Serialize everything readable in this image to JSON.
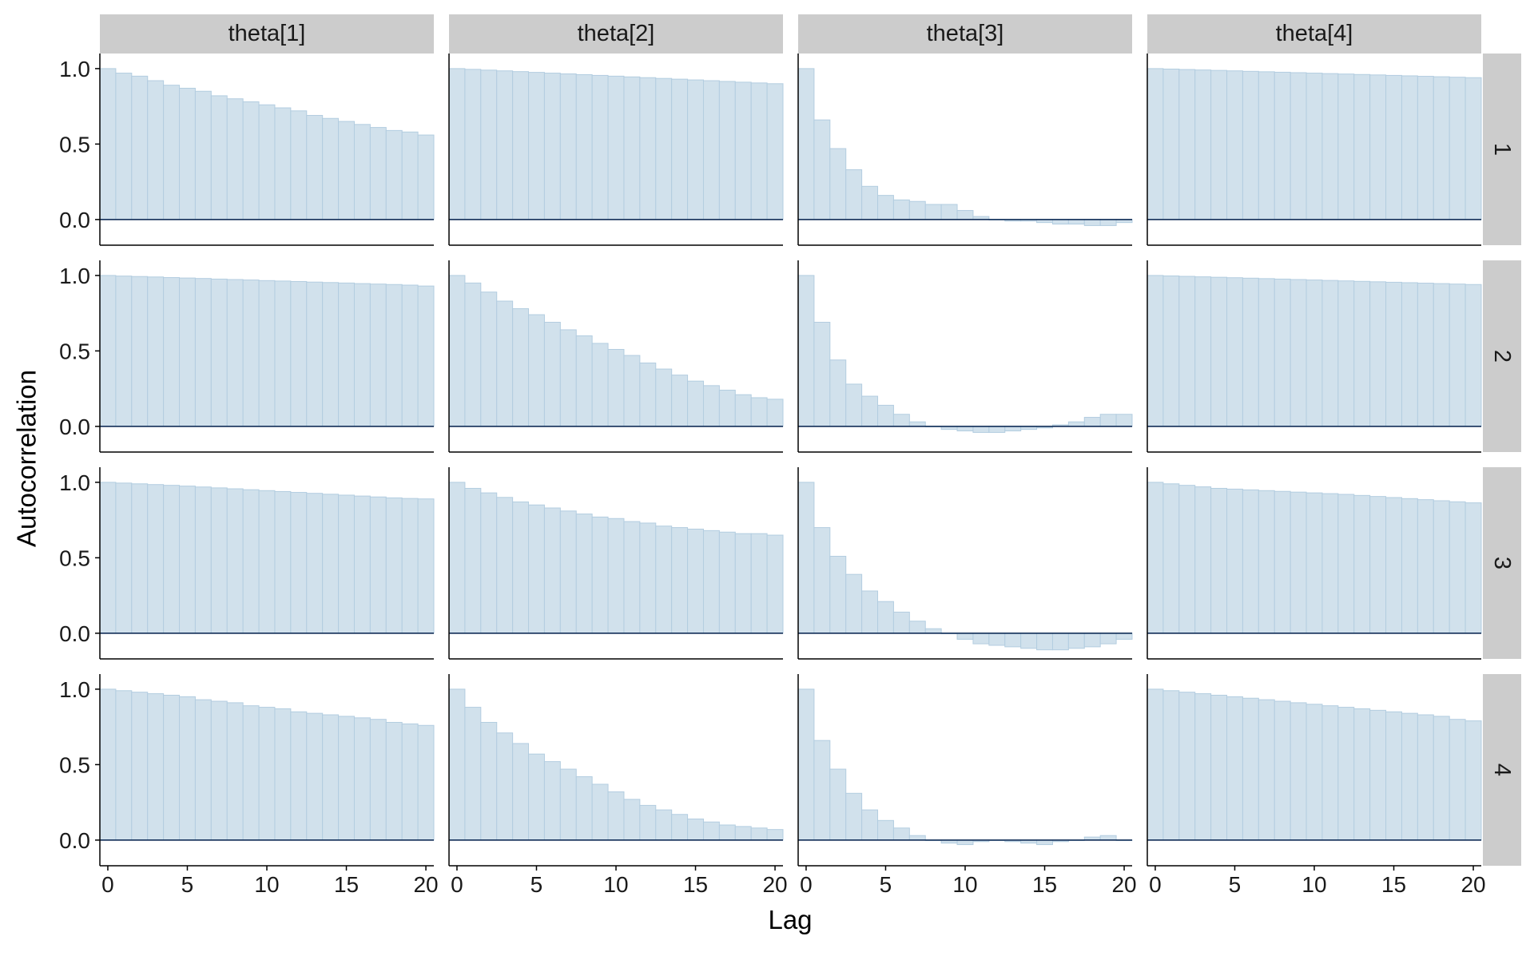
{
  "chart_data": {
    "type": "bar",
    "subtype": "autocorrelation-facet-grid",
    "xlabel": "Lag",
    "ylabel": "Autocorrelation",
    "column_labels": [
      "theta[1]",
      "theta[2]",
      "theta[3]",
      "theta[4]"
    ],
    "row_labels": [
      "1",
      "2",
      "3",
      "4"
    ],
    "xlim": [
      -0.5,
      20.5
    ],
    "ylim": [
      -0.17,
      1.1
    ],
    "x_ticks": [
      0,
      5,
      10,
      15,
      20
    ],
    "y_ticks": [
      0.0,
      0.5,
      1.0
    ],
    "y_tick_labels": [
      "0.0",
      "0.5",
      "1.0"
    ],
    "lags": [
      0,
      1,
      2,
      3,
      4,
      5,
      6,
      7,
      8,
      9,
      10,
      11,
      12,
      13,
      14,
      15,
      16,
      17,
      18,
      19,
      20
    ],
    "grid": false,
    "colors": {
      "bar_fill": "#d1e1ec",
      "bar_edge": "#b3cde0",
      "zero_line": "#011f4b",
      "strip_bg": "#cccccc",
      "axis": "#000000"
    },
    "panels": [
      {
        "row": "1",
        "column": "theta[1]",
        "values": [
          1.0,
          0.97,
          0.95,
          0.92,
          0.89,
          0.87,
          0.85,
          0.82,
          0.8,
          0.78,
          0.76,
          0.74,
          0.72,
          0.69,
          0.67,
          0.65,
          0.63,
          0.61,
          0.59,
          0.58,
          0.56
        ]
      },
      {
        "row": "1",
        "column": "theta[2]",
        "values": [
          1.0,
          0.995,
          0.99,
          0.985,
          0.98,
          0.975,
          0.97,
          0.965,
          0.96,
          0.955,
          0.95,
          0.945,
          0.94,
          0.935,
          0.93,
          0.925,
          0.92,
          0.915,
          0.91,
          0.905,
          0.9
        ]
      },
      {
        "row": "1",
        "column": "theta[3]",
        "values": [
          1.0,
          0.66,
          0.47,
          0.33,
          0.22,
          0.16,
          0.13,
          0.12,
          0.1,
          0.1,
          0.06,
          0.02,
          0.0,
          -0.01,
          -0.01,
          -0.02,
          -0.03,
          -0.03,
          -0.04,
          -0.04,
          -0.02
        ]
      },
      {
        "row": "1",
        "column": "theta[4]",
        "values": [
          1.0,
          0.997,
          0.994,
          0.991,
          0.988,
          0.985,
          0.982,
          0.979,
          0.976,
          0.973,
          0.97,
          0.967,
          0.964,
          0.961,
          0.958,
          0.955,
          0.952,
          0.949,
          0.946,
          0.943,
          0.94
        ]
      },
      {
        "row": "2",
        "column": "theta[1]",
        "values": [
          1.0,
          0.996,
          0.993,
          0.99,
          0.986,
          0.983,
          0.98,
          0.976,
          0.973,
          0.97,
          0.966,
          0.963,
          0.96,
          0.956,
          0.953,
          0.95,
          0.946,
          0.943,
          0.94,
          0.936,
          0.93
        ]
      },
      {
        "row": "2",
        "column": "theta[2]",
        "values": [
          1.0,
          0.95,
          0.89,
          0.83,
          0.78,
          0.74,
          0.69,
          0.64,
          0.6,
          0.55,
          0.51,
          0.47,
          0.42,
          0.38,
          0.34,
          0.3,
          0.27,
          0.24,
          0.21,
          0.19,
          0.18
        ]
      },
      {
        "row": "2",
        "column": "theta[3]",
        "values": [
          1.0,
          0.69,
          0.44,
          0.28,
          0.2,
          0.14,
          0.08,
          0.03,
          0.0,
          -0.02,
          -0.03,
          -0.04,
          -0.04,
          -0.03,
          -0.02,
          -0.01,
          0.01,
          0.03,
          0.06,
          0.08,
          0.08
        ]
      },
      {
        "row": "2",
        "column": "theta[4]",
        "values": [
          1.0,
          0.997,
          0.994,
          0.991,
          0.988,
          0.985,
          0.982,
          0.979,
          0.976,
          0.973,
          0.97,
          0.967,
          0.964,
          0.961,
          0.958,
          0.955,
          0.952,
          0.949,
          0.946,
          0.943,
          0.94
        ]
      },
      {
        "row": "3",
        "column": "theta[1]",
        "values": [
          1.0,
          0.995,
          0.99,
          0.985,
          0.98,
          0.975,
          0.969,
          0.963,
          0.957,
          0.951,
          0.945,
          0.939,
          0.933,
          0.927,
          0.921,
          0.915,
          0.909,
          0.903,
          0.897,
          0.893,
          0.89
        ]
      },
      {
        "row": "3",
        "column": "theta[2]",
        "values": [
          1.0,
          0.96,
          0.93,
          0.9,
          0.87,
          0.85,
          0.83,
          0.81,
          0.79,
          0.77,
          0.76,
          0.74,
          0.73,
          0.71,
          0.7,
          0.69,
          0.68,
          0.67,
          0.66,
          0.66,
          0.65
        ]
      },
      {
        "row": "3",
        "column": "theta[3]",
        "values": [
          1.0,
          0.7,
          0.51,
          0.39,
          0.28,
          0.21,
          0.14,
          0.08,
          0.03,
          0.0,
          -0.04,
          -0.07,
          -0.08,
          -0.09,
          -0.1,
          -0.11,
          -0.11,
          -0.1,
          -0.09,
          -0.07,
          -0.04
        ]
      },
      {
        "row": "3",
        "column": "theta[4]",
        "values": [
          1.0,
          0.99,
          0.98,
          0.97,
          0.96,
          0.955,
          0.95,
          0.945,
          0.94,
          0.935,
          0.93,
          0.925,
          0.92,
          0.913,
          0.906,
          0.899,
          0.892,
          0.885,
          0.878,
          0.871,
          0.864
        ]
      },
      {
        "row": "4",
        "column": "theta[1]",
        "values": [
          1.0,
          0.99,
          0.98,
          0.97,
          0.96,
          0.95,
          0.93,
          0.92,
          0.91,
          0.89,
          0.88,
          0.87,
          0.85,
          0.84,
          0.83,
          0.82,
          0.81,
          0.8,
          0.78,
          0.77,
          0.76
        ]
      },
      {
        "row": "4",
        "column": "theta[2]",
        "values": [
          1.0,
          0.88,
          0.78,
          0.71,
          0.64,
          0.57,
          0.52,
          0.47,
          0.42,
          0.37,
          0.32,
          0.27,
          0.23,
          0.2,
          0.17,
          0.14,
          0.12,
          0.1,
          0.09,
          0.08,
          0.07
        ]
      },
      {
        "row": "4",
        "column": "theta[3]",
        "values": [
          1.0,
          0.66,
          0.47,
          0.31,
          0.2,
          0.13,
          0.08,
          0.03,
          0.0,
          -0.02,
          -0.03,
          -0.01,
          0.0,
          -0.01,
          -0.02,
          -0.03,
          -0.01,
          0.0,
          0.02,
          0.03,
          0.0
        ]
      },
      {
        "row": "4",
        "column": "theta[4]",
        "values": [
          1.0,
          0.99,
          0.98,
          0.97,
          0.96,
          0.95,
          0.94,
          0.93,
          0.92,
          0.91,
          0.9,
          0.89,
          0.88,
          0.87,
          0.86,
          0.85,
          0.84,
          0.83,
          0.82,
          0.8,
          0.79
        ]
      }
    ]
  }
}
